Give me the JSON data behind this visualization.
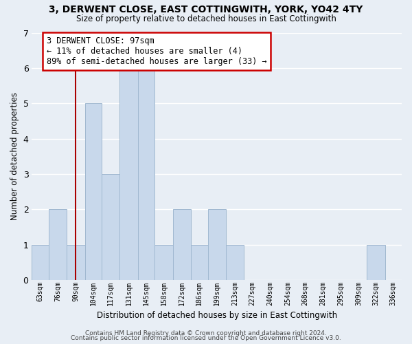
{
  "title": "3, DERWENT CLOSE, EAST COTTINGWITH, YORK, YO42 4TY",
  "subtitle": "Size of property relative to detached houses in East Cottingwith",
  "xlabel": "Distribution of detached houses by size in East Cottingwith",
  "ylabel": "Number of detached properties",
  "bin_labels": [
    "63sqm",
    "76sqm",
    "90sqm",
    "104sqm",
    "117sqm",
    "131sqm",
    "145sqm",
    "158sqm",
    "172sqm",
    "186sqm",
    "199sqm",
    "213sqm",
    "227sqm",
    "240sqm",
    "254sqm",
    "268sqm",
    "281sqm",
    "295sqm",
    "309sqm",
    "322sqm",
    "336sqm"
  ],
  "bar_heights": [
    1,
    2,
    1,
    5,
    3,
    6,
    6,
    1,
    2,
    1,
    2,
    1,
    0,
    0,
    0,
    0,
    0,
    0,
    0,
    1,
    0
  ],
  "bar_color": "#c8d8eb",
  "bar_edge_color": "#a0b8d0",
  "ylim": [
    0,
    7
  ],
  "yticks": [
    0,
    1,
    2,
    3,
    4,
    5,
    6,
    7
  ],
  "property_line_color": "#aa0000",
  "annotation_line1": "3 DERWENT CLOSE: 97sqm",
  "annotation_line2": "← 11% of detached houses are smaller (4)",
  "annotation_line3": "89% of semi-detached houses are larger (33) →",
  "annotation_box_color": "#ffffff",
  "annotation_box_edge_color": "#cc0000",
  "footer1": "Contains HM Land Registry data © Crown copyright and database right 2024.",
  "footer2": "Contains public sector information licensed under the Open Government Licence v3.0.",
  "background_color": "#e8eef5",
  "grid_color": "#ffffff",
  "bin_edges": [
    63,
    76,
    90,
    104,
    117,
    131,
    145,
    158,
    172,
    186,
    199,
    213,
    227,
    240,
    254,
    268,
    281,
    295,
    309,
    322,
    336,
    349
  ],
  "property_sqm": 97
}
